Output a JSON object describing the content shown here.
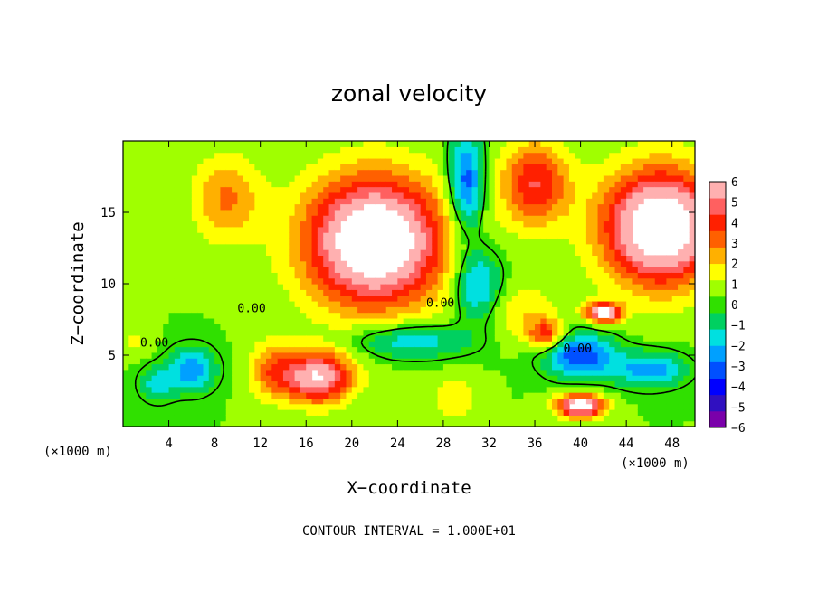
{
  "chart_data": {
    "type": "heatmap",
    "title": "zonal velocity",
    "xlabel": "X−coordinate",
    "ylabel": "Z−coordinate",
    "x_unit_label": "(×1000 m)",
    "x_unit_label_right": "(×1000 m)",
    "footer": "CONTOUR INTERVAL = 1.000E+01",
    "xlim": [
      0,
      50
    ],
    "ylim": [
      0,
      20
    ],
    "xticks": [
      "4",
      "8",
      "12",
      "16",
      "20",
      "24",
      "28",
      "32",
      "36",
      "40",
      "44",
      "48"
    ],
    "xtick_values": [
      4,
      8,
      12,
      16,
      20,
      24,
      28,
      32,
      36,
      40,
      44,
      48
    ],
    "yticks": [
      "5",
      "10",
      "15"
    ],
    "ytick_values": [
      5,
      10,
      15
    ],
    "colorbar": {
      "min": -6,
      "max": 6,
      "labels": [
        "6",
        "5",
        "4",
        "3",
        "2",
        "1",
        "0",
        "−1",
        "−2",
        "−3",
        "−4",
        "−5",
        "−6"
      ],
      "colors": [
        "#7a00aa",
        "#3010c0",
        "#0000ff",
        "#0050ff",
        "#00a0ff",
        "#00e0e0",
        "#00d060",
        "#30e000",
        "#a0ff00",
        "#ffff00",
        "#ffb000",
        "#ff6000",
        "#ff2000",
        "#ff6060",
        "#ffb0b0"
      ]
    },
    "contour_labels": [
      "0.00",
      "0.00",
      "0.00",
      "0.00"
    ],
    "blank_threshold": 6.3
  }
}
